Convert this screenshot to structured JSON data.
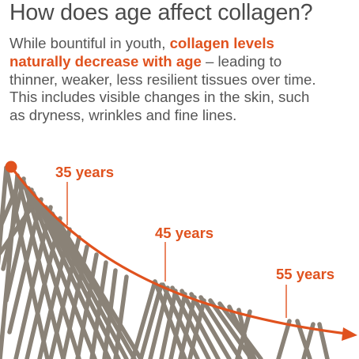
{
  "heading": "How does age affect collagen?",
  "intro": {
    "line1_before": "While bountiful in youth, ",
    "line1_highlight": "collagen levels",
    "line2_highlight": "naturally decrease with age",
    "line2_after": " – leading to",
    "line3": "thinner, weaker, less resilient tissues over time.",
    "line4": "This includes visible changes in the skin, such",
    "line5": "as dryness, wrinkles and fine lines."
  },
  "ages": [
    "35 years",
    "45 years",
    "55 years"
  ],
  "colors": {
    "accent": "#e0521e",
    "fiber": "#8a8277",
    "text": "#555555",
    "heading": "#4b4b4b"
  }
}
